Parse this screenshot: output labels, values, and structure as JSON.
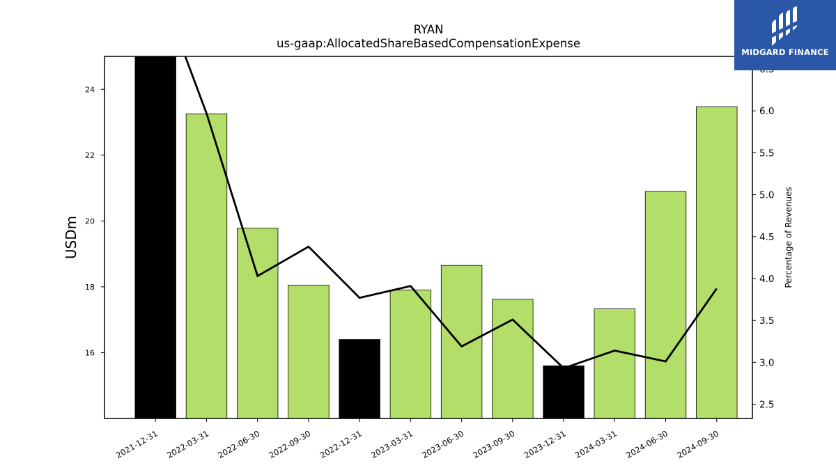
{
  "chart_data": {
    "type": "bar",
    "title": "RYAN",
    "subtitle": "us-gaap:AllocatedShareBasedCompensationExpense",
    "ylabel": "USDm",
    "ylabel_right": "Percentage of Revenues",
    "categories": [
      "2021-12-31",
      "2022-03-31",
      "2022-06-30",
      "2022-09-30",
      "2022-12-31",
      "2023-03-31",
      "2023-06-30",
      "2023-09-30",
      "2023-12-31",
      "2024-03-31",
      "2024-06-30",
      "2024-09-30"
    ],
    "series": [
      {
        "type": "bar",
        "values": [
          25.1,
          23.25,
          19.78,
          18.05,
          16.4,
          17.9,
          18.65,
          17.62,
          15.6,
          17.33,
          20.9,
          23.47
        ],
        "colors": [
          "#000000",
          "#b3de69",
          "#b3de69",
          "#b3de69",
          "#000000",
          "#b3de69",
          "#b3de69",
          "#b3de69",
          "#000000",
          "#b3de69",
          "#b3de69",
          "#b3de69"
        ]
      },
      {
        "type": "line",
        "axis": "right",
        "color": "#000000",
        "values": [
          7.6,
          5.97,
          4.03,
          4.38,
          3.77,
          3.91,
          3.19,
          3.51,
          2.93,
          3.14,
          3.01,
          3.88
        ]
      }
    ],
    "ylim": [
      14.0,
      25.0
    ],
    "yticks": [
      "16",
      "18",
      "20",
      "22",
      "24"
    ],
    "ylim_right": [
      2.33,
      6.65
    ],
    "yticks_right": [
      "2.5",
      "3.0",
      "3.5",
      "4.0",
      "4.5",
      "5.0",
      "5.5",
      "6.0",
      "6.5"
    ],
    "grid": false
  },
  "logo": {
    "text": "MIDGARD FINANCE"
  }
}
